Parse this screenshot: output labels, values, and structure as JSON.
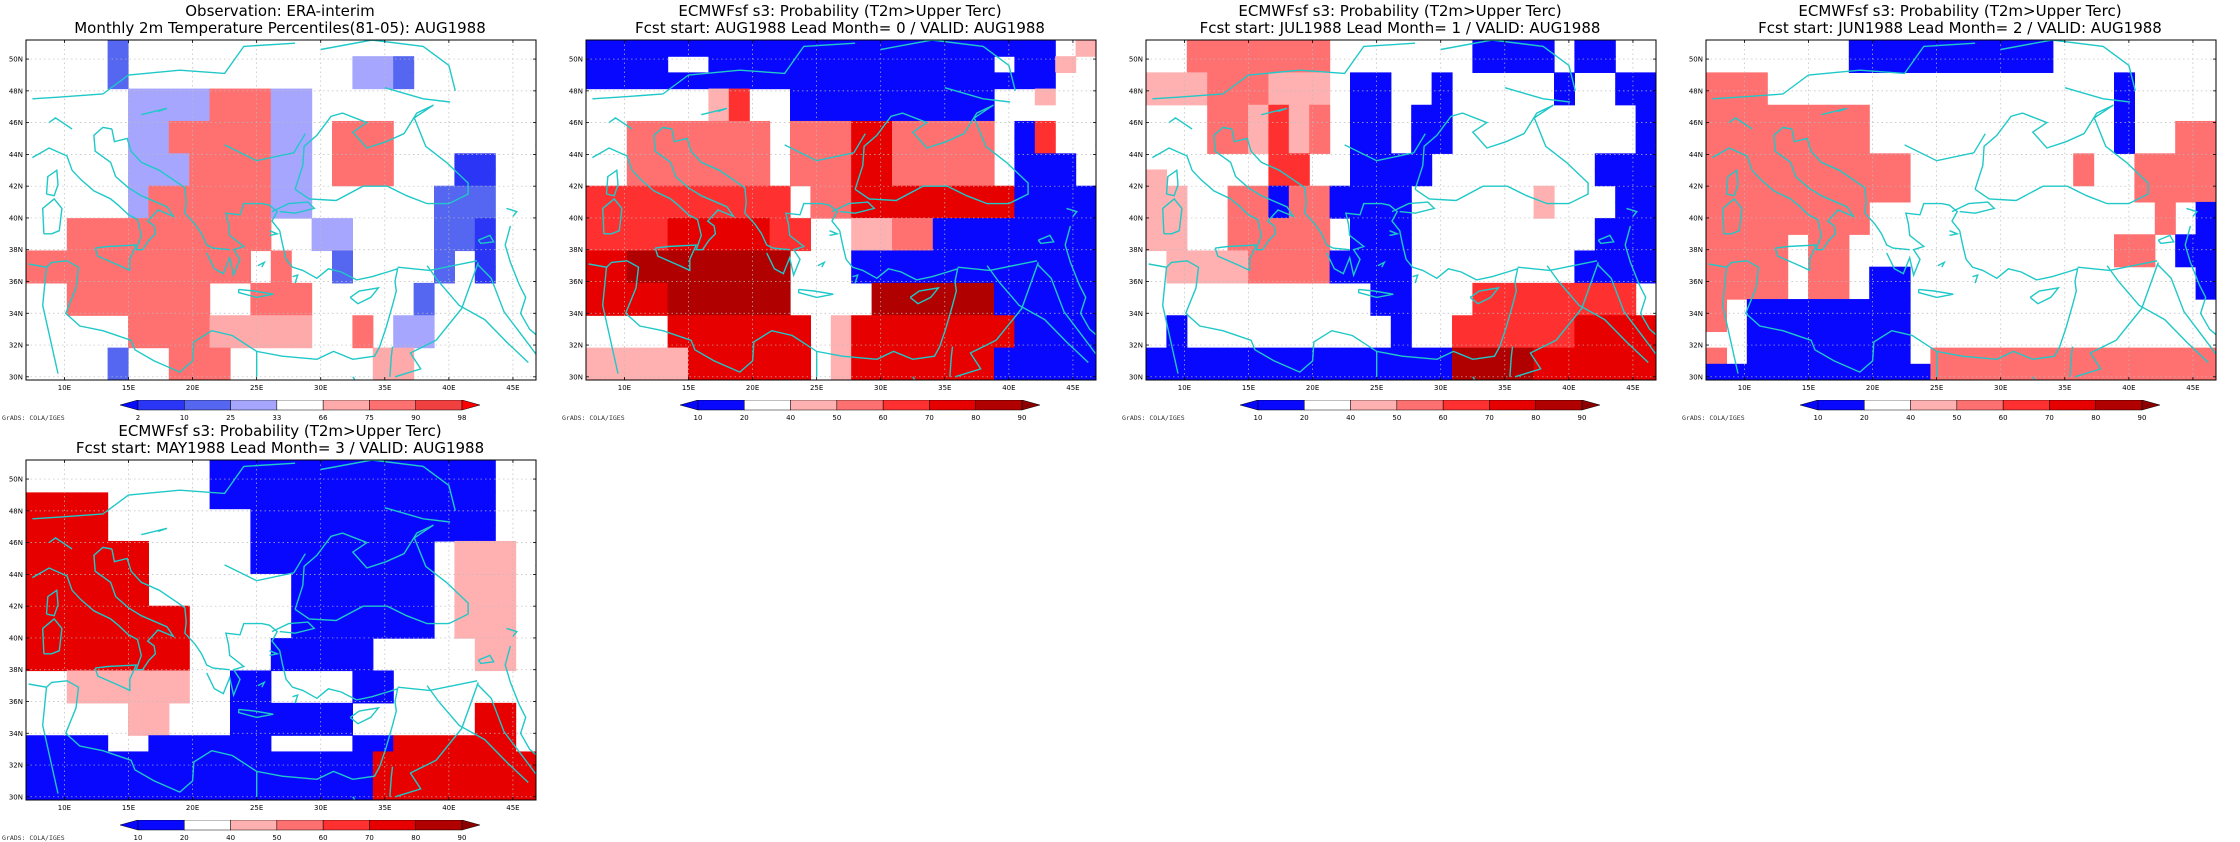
{
  "lon_ticks": [
    "10E",
    "15E",
    "20E",
    "25E",
    "30E",
    "35E",
    "40E",
    "45E"
  ],
  "lat_ticks": [
    "30N",
    "32N",
    "34N",
    "36N",
    "38N",
    "40N",
    "42N",
    "44N",
    "46N",
    "48N",
    "50N"
  ],
  "credit": "GrADS: COLA/IGES",
  "colors": {
    "coast": "#20c8c8",
    "grid": "#bbbbbb",
    "obs_scale": [
      "#0a0aff",
      "#2a35f5",
      "#5566f0",
      "#a6a6ff",
      "#ffffff",
      "#ffaaaa",
      "#ff7070",
      "#f04040",
      "#ff0000"
    ],
    "prob_scale": [
      "#0808ff",
      "#0808ff",
      "#ffffff",
      "#ffb0b0",
      "#ff7070",
      "#ff3030",
      "#e60000",
      "#b00000",
      "#8c0000"
    ]
  },
  "colorbars": {
    "observation": [
      "2",
      "10",
      "25",
      "33",
      "66",
      "75",
      "90",
      "98"
    ],
    "probability": [
      "10",
      "20",
      "40",
      "50",
      "60",
      "70",
      "80",
      "90"
    ]
  },
  "panels": [
    {
      "id": "obs",
      "title1": "Observation: ERA-interim",
      "title2": "Monthly 2m Temperature Percentiles(81-05): AUG1988",
      "scale": "obs",
      "grid": [
        "....c....................",
        "....c...........ddc......",
        "....c...........ddc......",
        ".....ddddgggdd...........",
        ".....ddddgggdd...........",
        ".....ddgggggdd.ggg.......",
        ".....ddgggggdd.ggg.......",
        ".....dddggggdd.ggg...bb..",
        ".....dddggggdd.ggg...bb..",
        ".....dggggggdd......ccc..",
        ".....dggggggdd......ccc..",
        "..gggggggggg..dd....ccb..",
        "..gggggggggg..dd....ccb..",
        "ggggggggggg.g..c....c.b..",
        "ggggggggggg.g..c....c.b..",
        "..ggggggg..ggg.....c.....",
        "..ggggggg..ggg.....c.....",
        ".....ggggfffff..g.dd.....",
        ".....ggggfffff..g.dd.....",
        "....c..ggg.......ff......",
        "....c..ggg.......ff......"
      ]
    },
    {
      "id": "lead0",
      "title1": "ECMWFsf s3: Probability (T2m>Upper Terc)",
      "title2": "Fcst start: AUG1988  Lead Month= 0 / VALID: AUG1988",
      "scale": "prob",
      "grid": [
        "aaaaaaaaaaaaaaaaaaaaaaa.d",
        "aaaa..aaaaaaaaaaaaaa.aad.",
        "aaaaaaaaaaaaaaaaaaaaaaa..",
        "......df..aaaaaaaaaa..d..",
        "......df..aaaaaaaaaa.....",
        "..eeeeeee.eeeggeeeee.af..",
        "..eeeeeee.eeeggeeeee.af..",
        "..eeeeeee.eeeggeeeee.aaa.",
        "..eeeeeee.eeeggeeeee.aaa.",
        "ffffffffff.eeggggggggaaaa",
        "ffffffffff.eeggggggggaaaa",
        "ffffgggggff..ddeeaaaaaaaa",
        "ffffgggggff..ddeeaaaaaaaa",
        "gghhhhhhhh...aaaaaaaaaaaa",
        "gghhhhhhhh...aaaaaaaaaaaa",
        "gggghhhhhh....hhhhhhaaaaa",
        "gggghhhhhh....hhhhhhaaaaa",
        "....ggggggg.dggggggggaaaa",
        "....ggggggg.dggggggggaaaa",
        "dddddgggggg.dgggggggaaaaa",
        "dddddgggggg.dgggggggaaaaa"
      ]
    },
    {
      "id": "lead1",
      "title1": "ECMWFsf s3: Probability (T2m>Upper Terc)",
      "title2": "Fcst start: JUL1988  Lead Month= 1 / VALID: AUG1988",
      "scale": "prob",
      "grid": [
        "..eeeeeee.......aaaa.aa..",
        "..eeeeeee.......aaaa.aa..",
        "dddeeeddd.aa..a.....a..aa",
        "dddeeeddd.aa..a.....a..aa",
        "...eedfde.aa.aa.........a",
        "...eedfde.aa.aa.........a",
        "...eedfde.aa.aa.........a",
        "......ff..aaaa........aaa",
        "d.....ff..aaaa........aaa",
        "dd..eeaeeaaaa......d...aa",
        "dd..eeaeeaaaa......d...aa",
        "dd..eeeee.aaa.........aaa",
        "dd..eeeee.aaa.........aaa",
        ".ddddeeeeaaaa........aaaa",
        ".ddddeeeeaaaa........aaaa",
        "...........aa...ffffffff.",
        "...........aa...ffffffff.",
        ".a..........a..ffffffgggg",
        ".a..........a..ffffffgggg",
        "aaaaaaaaaaaaaaahhhhgggggg",
        "aaaaaaaaaaaaaaahhhhgggggg"
      ]
    },
    {
      "id": "lead2",
      "title1": "ECMWFsf s3: Probability (T2m>Upper Terc)",
      "title2": "Fcst start: JUN1988  Lead Month= 2 / VALID: AUG1988",
      "scale": "prob",
      "grid": [
        ".......aaaaaaaaaa........",
        ".......aaaaaaaaaa........",
        "eee.................a....",
        "eee.................a....",
        "eeeeeeee............a....",
        "eeeeeeee............a..ee",
        "eeeeeeee............a..ee",
        "eeeeeeeeee........e..eeee",
        "eeeeeeeeee........e..eeee",
        "eeeeeeeeee...........eeee",
        "eeeeeeee..............e.a",
        "eeeeeeee..............e.a",
        "eeee.ee.............ee.aa",
        "eeee.ee.............ee.aa",
        "eeee.ee.aa..............a",
        "eeee.ee.aa..............a",
        "e.aaaaaaaa...............",
        "e.aaaaaaaa...............",
        "..aaaaaaaa...............",
        "e.aaaaaaaa.eeeeeeeeeeeeee",
        "aaaaaaaaaaaeeeeeeeeeeeeee"
      ]
    },
    {
      "id": "lead3",
      "title1": "ECMWFsf s3: Probability (T2m>Upper Terc)",
      "title2": "Fcst start: MAY1988  Lead Month= 3 / VALID: AUG1988",
      "scale": "prob",
      "grid": [
        ".........aaaaaaaaaaaaaa..",
        ".........aaaaaaaaaaaaaa..",
        "gggg.....aaaaaaaaaaaaaa..",
        "gggg.......aaaaaaaaaaaa..",
        "gggg.......aaaaaaaaaaaa..",
        "gggggg.....aaaaaaaaa.ddd.",
        "gggggg.....aaaaaaaaa.ddd.",
        "gggggg.......aaaaaaa.ddd.",
        "gggggg.......aaaaaaa.ddd.",
        "gggggggg.....aaaaaaa.ddd.",
        "gggggggg.....aaaaaaa.ddd.",
        "gggggggg....aaaaa.....dd.",
        "gggggggg....aaaaa.....dd.",
        "..dddddd..aa....aa.......",
        "..dddddd..aa....aa.......",
        ".....dd...aaaaaa......gg.",
        ".....dd...aaaaaa......gg.",
        "aaaa..aaaaaa....aagggggg.",
        "aaaaaaaaaaaaaaaaagggggggg",
        "aaaaaaaaaaaaaaaaagggggggg",
        "aaaaaaaaaaaaaaaaagggggggg"
      ]
    }
  ]
}
